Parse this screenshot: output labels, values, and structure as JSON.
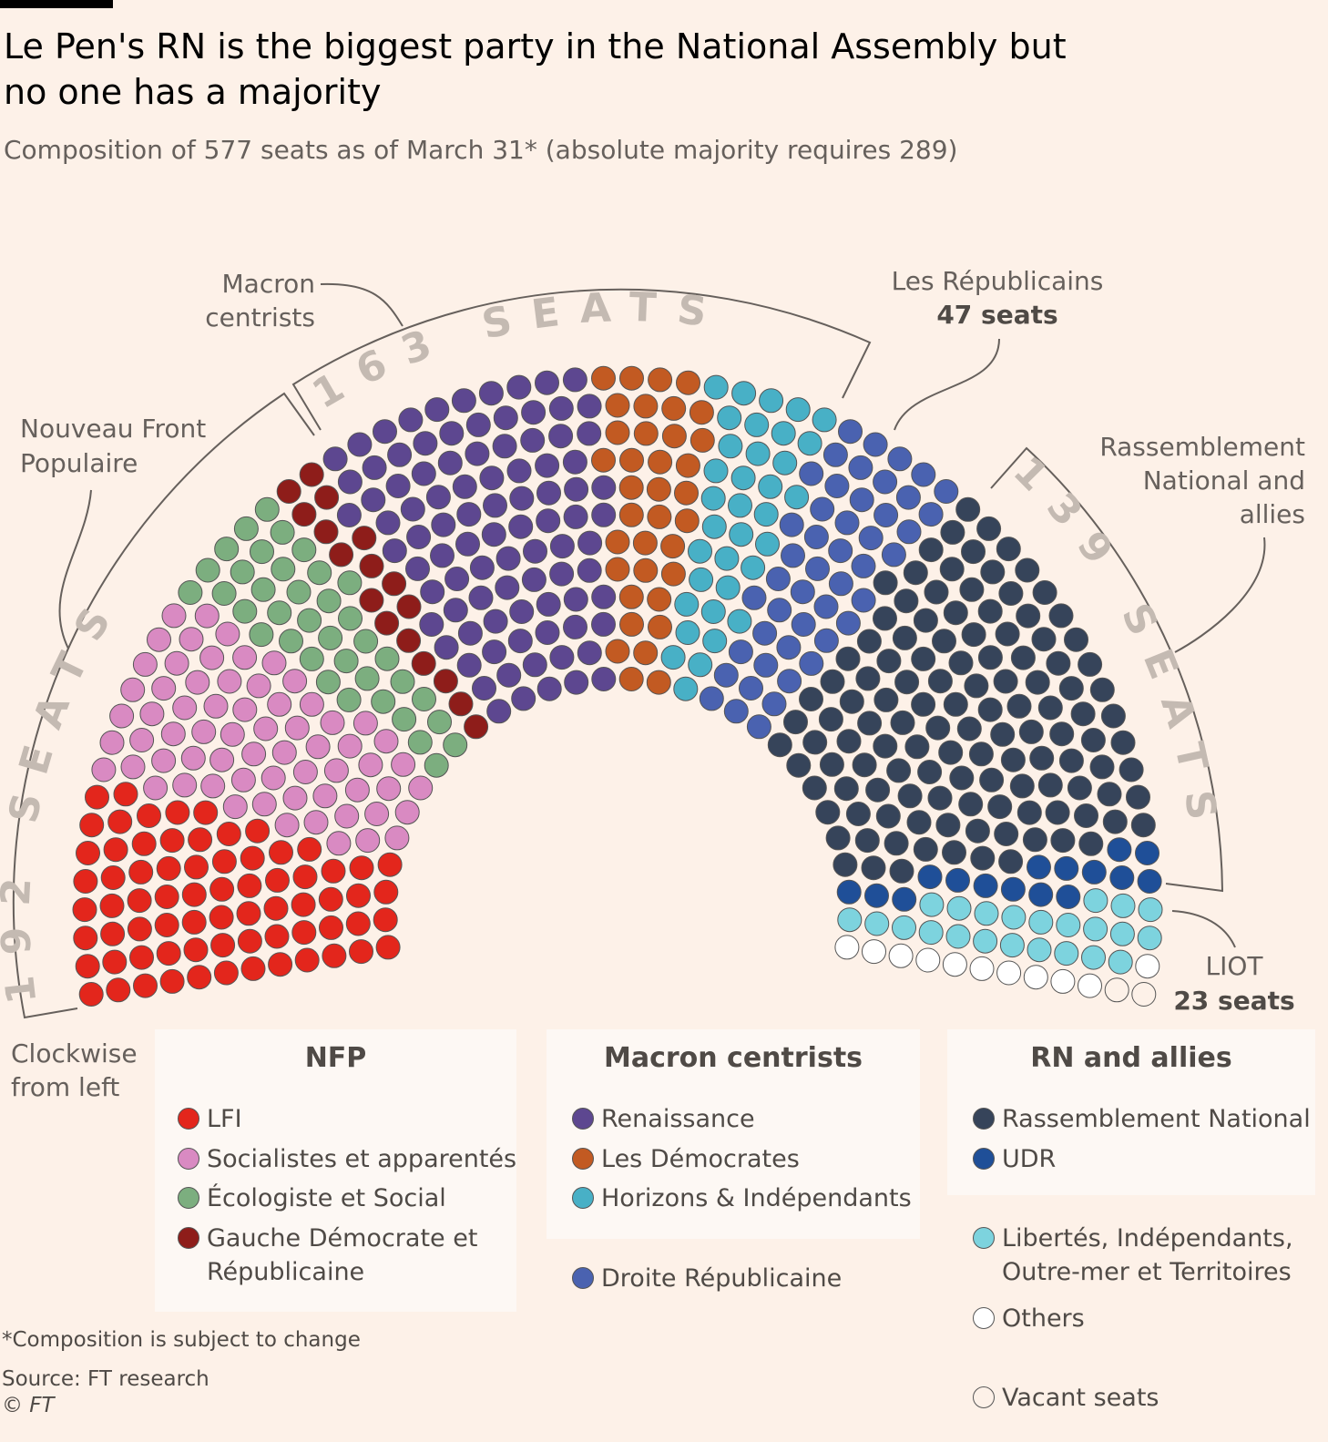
{
  "title": "Le Pen's RN is the biggest party in the National Assembly but no one has a majority",
  "subtitle": "Composition of 577 seats as of March 31* (absolute majority requires 289)",
  "chart_data": {
    "type": "parliament",
    "total_seats": 577,
    "majority": 289,
    "order": "Clockwise from left",
    "parties": [
      {
        "name": "LFI",
        "seats": 71,
        "color": "#e3261c",
        "group": "NFP"
      },
      {
        "name": "Socialistes et apparentés",
        "seats": 66,
        "color": "#d98ac2",
        "group": "NFP"
      },
      {
        "name": "Écologiste et Social",
        "seats": 38,
        "color": "#7cae7f",
        "group": "NFP"
      },
      {
        "name": "Gauche Démocrate et Républicaine",
        "seats": 17,
        "color": "#8e1d1a",
        "group": "NFP"
      },
      {
        "name": "Renaissance",
        "seats": 92,
        "color": "#5d4790",
        "group": "Macron centrists"
      },
      {
        "name": "Les Démocrates",
        "seats": 36,
        "color": "#c25a22",
        "group": "Macron centrists"
      },
      {
        "name": "Horizons & Indépendants",
        "seats": 35,
        "color": "#48b0c6",
        "group": "Macron centrists"
      },
      {
        "name": "Droite Républicaine",
        "seats": 47,
        "color": "#4a62b0",
        "group": ""
      },
      {
        "name": "Rassemblement National",
        "seats": 123,
        "color": "#36445a",
        "group": "RN and allies"
      },
      {
        "name": "UDR",
        "seats": 16,
        "color": "#1f4f98",
        "group": "RN and allies"
      },
      {
        "name": "Libertés, Indépendants, Outre-mer et Territoires",
        "seats": 23,
        "color": "#7dd3de",
        "group": ""
      },
      {
        "name": "Others",
        "seats": 11,
        "color": "#ffffff",
        "group": ""
      },
      {
        "name": "Vacant seats",
        "seats": 2,
        "color": "#fdf1e8",
        "group": ""
      }
    ]
  },
  "annotations": {
    "macron": "Macron",
    "macron2": "centrists",
    "nfp": "Nouveau Front",
    "nfp2": "Populaire",
    "lr": "Les Républicains",
    "lr_seats": "47 seats",
    "rn": "Rassemblement",
    "rn2": "National and",
    "rn3": "allies",
    "liot": "LIOT",
    "liot_seats": "23 seats",
    "nfp_bracket": "192 SEATS",
    "macron_bracket": "163 SEATS",
    "rn_bracket": "139 SEATS",
    "clockwise": "Clockwise",
    "clockwise2": "from left"
  },
  "legend": {
    "nfp_title": "NFP",
    "macron_title": "Macron centrists",
    "rn_title": "RN and allies",
    "lfi": "LFI",
    "soc": "Socialistes et apparentés",
    "eco": "Écologiste et Social",
    "gdr": "Gauche Démocrate et",
    "gdr2": "Républicaine",
    "ren": "Renaissance",
    "dem": "Les Démocrates",
    "hor": "Horizons & Indépendants",
    "dr": "Droite Républicaine",
    "rnp": "Rassemblement National",
    "udr": "UDR",
    "liot": "Libertés, Indépendants,",
    "liot2": "Outre-mer et Territoires",
    "others": "Others",
    "vacant": "Vacant seats"
  },
  "footer": {
    "note": "*Composition is subject to change",
    "source": "Source: FT research",
    "copyright": "© FT"
  }
}
